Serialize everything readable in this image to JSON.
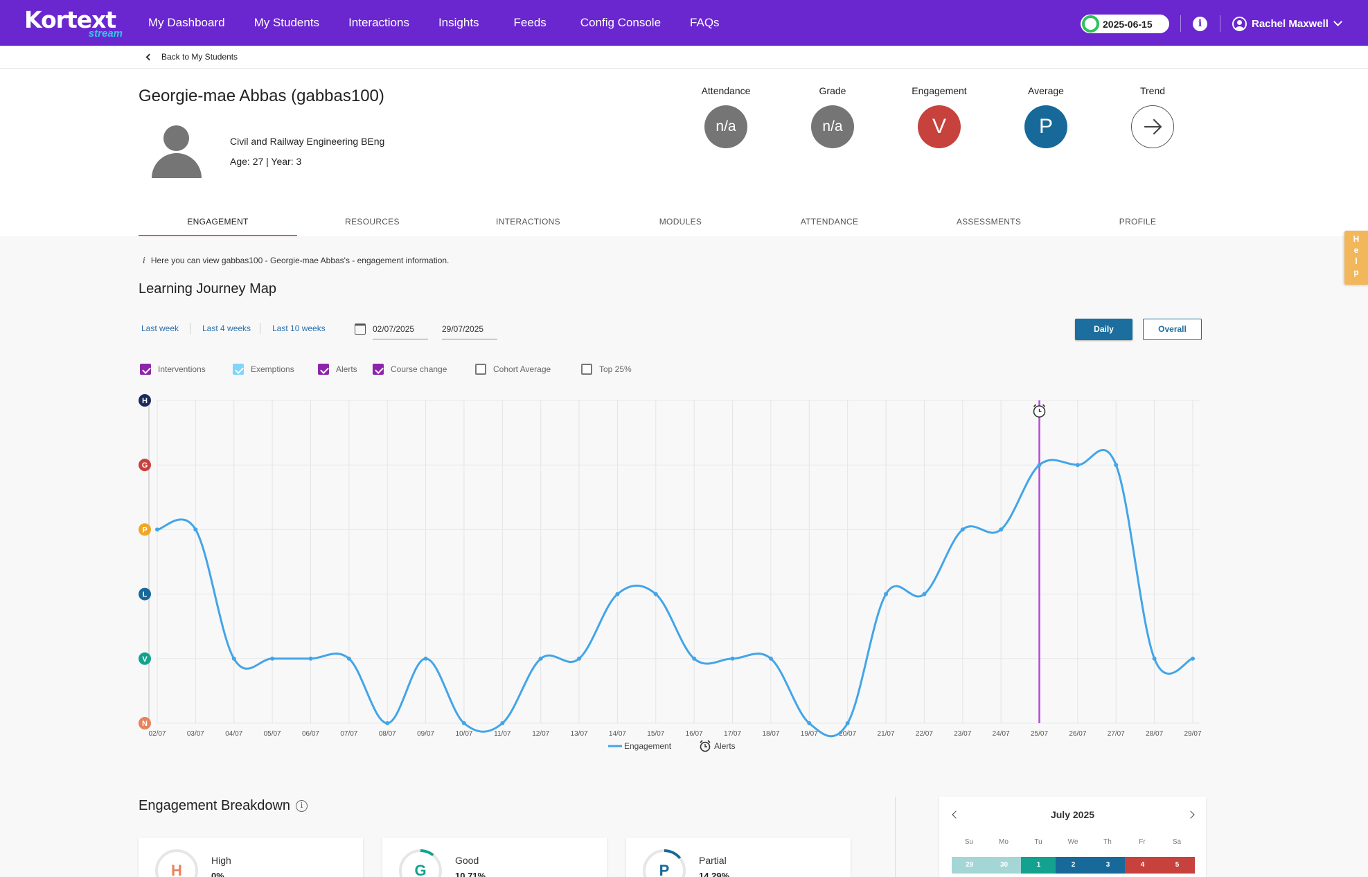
{
  "nav": {
    "logo_main": "Kortext",
    "logo_sub": "stream",
    "links": [
      "My Dashboard",
      "My Students",
      "Interactions",
      "Insights",
      "Feeds",
      "Config Console",
      "FAQs"
    ],
    "date": "2025-06-15",
    "info": "i",
    "user_name": "Rachel Maxwell"
  },
  "back": {
    "label": "Back to My Students"
  },
  "student": {
    "name": "Georgie-mae Abbas (gabbas100)",
    "course": "Civil and Railway Engineering BEng",
    "age_year": "Age: 27 | Year: 3"
  },
  "metrics": [
    {
      "label": "Attendance",
      "value": "n/a",
      "color": "#757575"
    },
    {
      "label": "Grade",
      "value": "n/a",
      "color": "#757575"
    },
    {
      "label": "Engagement",
      "value": "V",
      "color": "#c7423c"
    },
    {
      "label": "Average",
      "value": "P",
      "color": "#17699a"
    },
    {
      "label": "Trend",
      "value": "",
      "icon": "arrow-right-icon"
    }
  ],
  "tabs": [
    "ENGAGEMENT",
    "RESOURCES",
    "INTERACTIONS",
    "MODULES",
    "ATTENDANCE",
    "ASSESSMENTS",
    "PROFILE"
  ],
  "active_tab": "ENGAGEMENT",
  "help": [
    "H",
    "e",
    "l",
    "p"
  ],
  "info_text": "Here you can view gabbas100 - Georgie-mae Abbas's - engagement information.",
  "journey": {
    "title": "Learning Journey Map",
    "ranges": [
      "Last week",
      "Last 4 weeks",
      "Last 10 weeks"
    ],
    "date_from": "02/07/2025",
    "date_to": "29/07/2025",
    "buttons": {
      "daily": "Daily",
      "overall": "Overall"
    },
    "filters": [
      {
        "label": "Interventions",
        "checked": true,
        "color": "#8e24aa"
      },
      {
        "label": "Exemptions",
        "checked": true,
        "color": "#81d4fa"
      },
      {
        "label": "Alerts",
        "checked": true,
        "color": "#8e24aa"
      },
      {
        "label": "Course change",
        "checked": true,
        "color": "#8e24aa"
      },
      {
        "label": "Cohort Average",
        "checked": false,
        "color": "#777777"
      },
      {
        "label": "Top 25%",
        "checked": false,
        "color": "#777777"
      }
    ]
  },
  "chart_data": {
    "type": "line",
    "x": [
      "02/07",
      "03/07",
      "04/07",
      "05/07",
      "06/07",
      "07/07",
      "08/07",
      "09/07",
      "10/07",
      "11/07",
      "12/07",
      "13/07",
      "14/07",
      "15/07",
      "16/07",
      "17/07",
      "18/07",
      "19/07",
      "20/07",
      "21/07",
      "22/07",
      "23/07",
      "24/07",
      "25/07",
      "26/07",
      "27/07",
      "28/07",
      "29/07"
    ],
    "y_categories": [
      "N",
      "V",
      "L",
      "P",
      "G",
      "H"
    ],
    "y_colors": [
      "#e8825a",
      "#12a28f",
      "#17699a",
      "#f2a623",
      "#c7423c",
      "#1a2b5c"
    ],
    "series": [
      {
        "name": "Engagement",
        "color": "#42a5e8",
        "values": [
          3,
          3,
          1,
          1,
          1,
          1,
          0,
          1,
          0,
          0,
          1,
          1,
          2,
          2,
          1,
          1,
          1,
          0,
          0,
          2,
          2,
          3,
          3,
          4,
          4,
          4,
          1,
          1
        ]
      }
    ],
    "alerts": [
      {
        "x": "25/07",
        "label": "Alerts",
        "color": "#b84ad6"
      }
    ],
    "legend": [
      "Engagement",
      "Alerts"
    ],
    "legend_position": "bottom",
    "grid": true
  },
  "breakdown": {
    "title": "Engagement Breakdown",
    "cards": [
      {
        "letter": "H",
        "name": "High",
        "pct": "0%",
        "color": "#e8825a",
        "fraction": 0
      },
      {
        "letter": "G",
        "name": "Good",
        "pct": "10.71%",
        "color": "#12a28f",
        "fraction": 0.1071
      },
      {
        "letter": "P",
        "name": "Partial",
        "pct": "14.29%",
        "color": "#17699a",
        "fraction": 0.1429
      }
    ]
  },
  "calendar": {
    "title": "July 2025",
    "dow": [
      "Su",
      "Mo",
      "Tu",
      "We",
      "Th",
      "Fr",
      "Sa"
    ],
    "days": [
      {
        "d": "29",
        "color": "#a5d6d6"
      },
      {
        "d": "30",
        "color": "#a5d6d6"
      },
      {
        "d": "1",
        "color": "#12a28f"
      },
      {
        "d": "2",
        "color": "#17699a"
      },
      {
        "d": "3",
        "color": "#17699a"
      },
      {
        "d": "4",
        "color": "#c7423c"
      },
      {
        "d": "5",
        "color": "#c7423c"
      }
    ]
  }
}
